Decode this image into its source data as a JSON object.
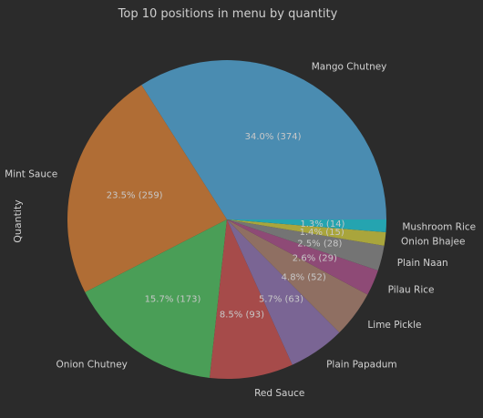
{
  "chart_data": {
    "type": "pie",
    "title": "Top 10 positions in menu by quantity",
    "ylabel": "Quantity",
    "slices": [
      {
        "label": "Mango Chutney",
        "value": 374,
        "pct_label": "34.0% (374)",
        "color": "#4a8cb1"
      },
      {
        "label": "Mint Sauce",
        "value": 259,
        "pct_label": "23.5% (259)",
        "color": "#b06d35"
      },
      {
        "label": "Onion Chutney",
        "value": 173,
        "pct_label": "15.7% (173)",
        "color": "#4a9e57"
      },
      {
        "label": "Red Sauce",
        "value": 93,
        "pct_label": "8.5% (93)",
        "color": "#a64b4a"
      },
      {
        "label": "Plain Papadum",
        "value": 63,
        "pct_label": "5.7% (63)",
        "color": "#7a6594"
      },
      {
        "label": "Lime Pickle",
        "value": 52,
        "pct_label": "4.8% (52)",
        "color": "#8f6f62"
      },
      {
        "label": "Pilau Rice",
        "value": 29,
        "pct_label": "2.6% (29)",
        "color": "#8e4a76"
      },
      {
        "label": "Plain Naan",
        "value": 28,
        "pct_label": "2.5% (28)",
        "color": "#747474"
      },
      {
        "label": "Onion Bhajee",
        "value": 15,
        "pct_label": "1.4% (15)",
        "color": "#a9a53c"
      },
      {
        "label": "Mushroom Rice",
        "value": 14,
        "pct_label": "1.3% (14)",
        "color": "#25a4b0"
      }
    ]
  }
}
